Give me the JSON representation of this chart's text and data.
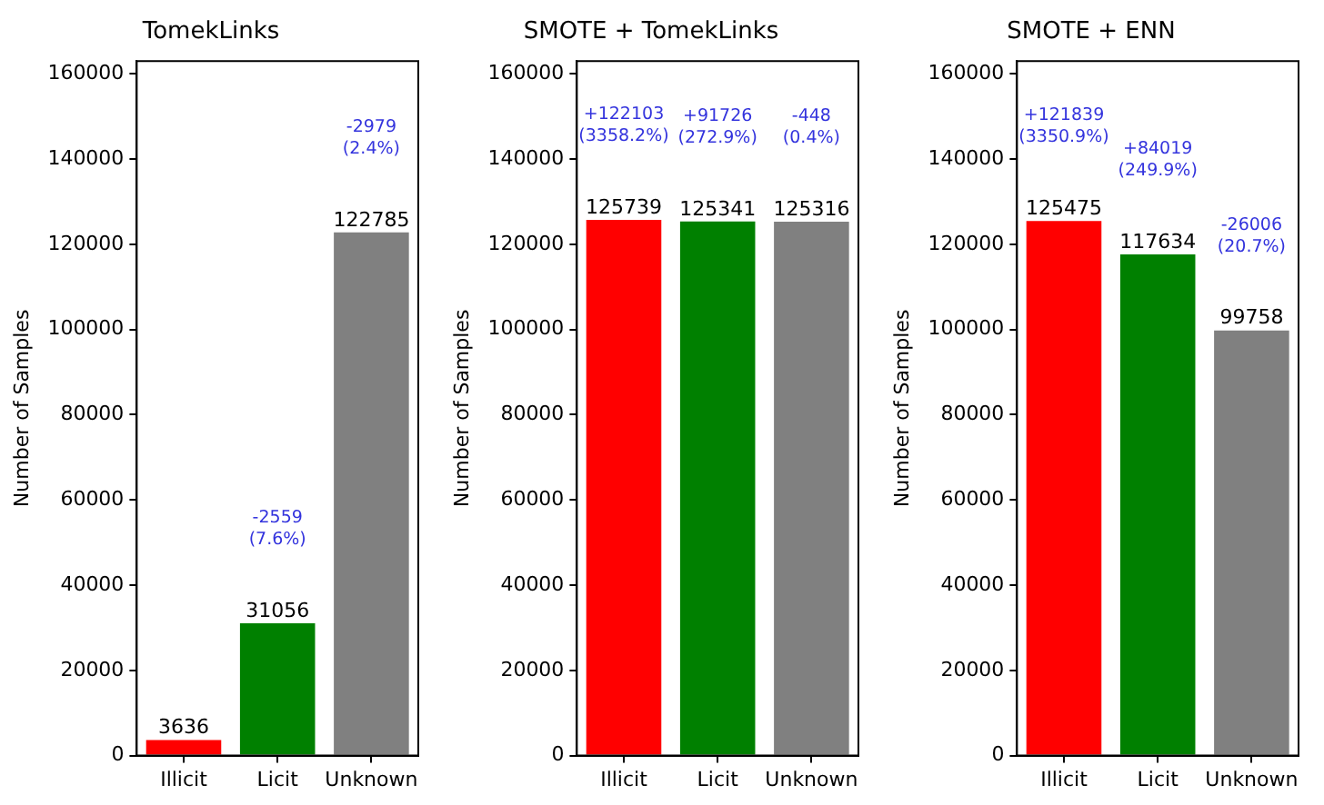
{
  "chart_data": [
    {
      "type": "bar",
      "title": "TomekLinks",
      "ylabel": "Number of Samples",
      "categories": [
        "Illicit",
        "Licit",
        "Unknown"
      ],
      "values": [
        3636,
        31056,
        122785
      ],
      "colors": [
        "#ff0000",
        "#008000",
        "#808080"
      ],
      "ylim": [
        0,
        163000
      ],
      "yticks": [
        0,
        20000,
        40000,
        60000,
        80000,
        100000,
        120000,
        140000,
        160000
      ],
      "grid": false,
      "data_labels": true,
      "annotations": [
        "-2559\n(7.6%)",
        "-2979\n(2.4%)"
      ]
    },
    {
      "type": "bar",
      "title": "SMOTE + TomekLinks",
      "ylabel": "Number of Samples",
      "categories": [
        "Illicit",
        "Licit",
        "Unknown"
      ],
      "values": [
        125739,
        125341,
        125316
      ],
      "colors": [
        "#ff0000",
        "#008000",
        "#808080"
      ],
      "ylim": [
        0,
        163000
      ],
      "yticks": [
        0,
        20000,
        40000,
        60000,
        80000,
        100000,
        120000,
        140000,
        160000
      ],
      "grid": false,
      "data_labels": true,
      "annotations": [
        "+122103\n(3358.2%)",
        "+91726\n(272.9%)",
        "-448\n(0.4%)"
      ]
    },
    {
      "type": "bar",
      "title": "SMOTE + ENN",
      "ylabel": "Number of Samples",
      "categories": [
        "Illicit",
        "Licit",
        "Unknown"
      ],
      "values": [
        125475,
        117634,
        99758
      ],
      "colors": [
        "#ff0000",
        "#008000",
        "#808080"
      ],
      "ylim": [
        0,
        163000
      ],
      "yticks": [
        0,
        20000,
        40000,
        60000,
        80000,
        100000,
        120000,
        140000,
        160000
      ],
      "grid": false,
      "data_labels": true,
      "annotations": [
        "+121839\n(3350.9%)",
        "+84019\n(249.9%)",
        "-26006\n(20.7%)"
      ]
    }
  ]
}
